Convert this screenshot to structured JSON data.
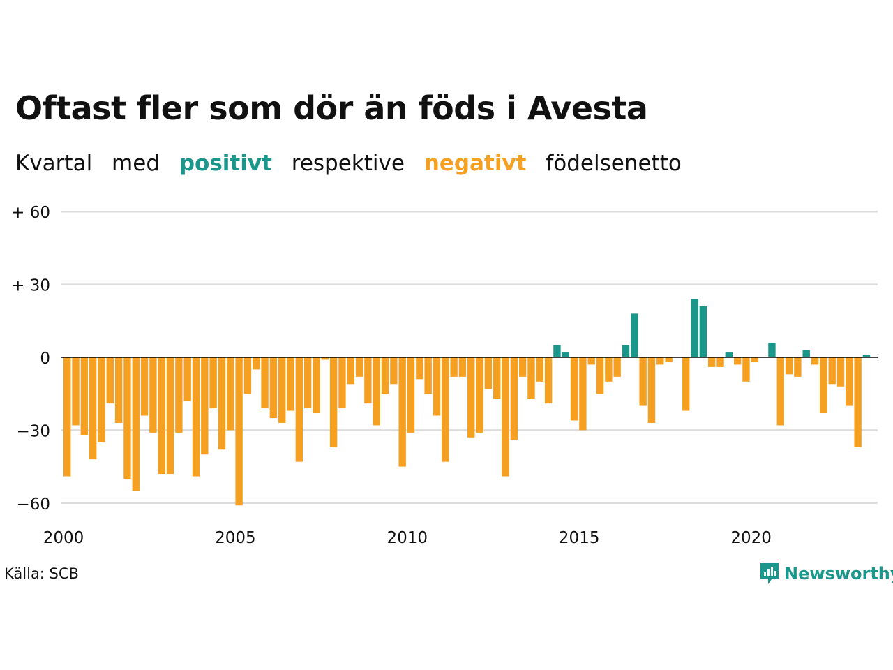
{
  "title": "Oftast fler som dör än föds i Avesta",
  "subtitle": {
    "w1": "Kvartal",
    "w2": "med",
    "positive": "positivt",
    "w3": "respektive",
    "negative": "negativt",
    "w4": "födelsenetto"
  },
  "colors": {
    "positive": "#1b968a",
    "negative": "#f5a021",
    "grid": "#dddddd",
    "zero": "#000000"
  },
  "source": "Källa: SCB",
  "brand": "Newsworthy",
  "chart_data": {
    "type": "bar",
    "x_start": 2000,
    "y_ticks": [
      {
        "value": 60,
        "label": "+ 60"
      },
      {
        "value": 30,
        "label": "+ 30"
      },
      {
        "value": 0,
        "label": "0"
      },
      {
        "value": -30,
        "label": "−30"
      },
      {
        "value": -60,
        "label": "−60"
      }
    ],
    "x_ticks": [
      "2000",
      "2005",
      "2010",
      "2015",
      "2020"
    ],
    "ylim": [
      -65,
      60
    ],
    "values": [
      -49,
      -28,
      -32,
      -42,
      -35,
      -19,
      -27,
      -50,
      -55,
      -24,
      -31,
      -48,
      -48,
      -31,
      -18,
      -49,
      -40,
      -21,
      -38,
      -30,
      -61,
      -15,
      -5,
      -21,
      -25,
      -27,
      -22,
      -43,
      -21,
      -23,
      -1,
      -37,
      -21,
      -11,
      -8,
      -19,
      -28,
      -15,
      -11,
      -45,
      -31,
      -9,
      -15,
      -24,
      -43,
      -8,
      -8,
      -33,
      -31,
      -13,
      -17,
      -49,
      -34,
      -8,
      -17,
      -10,
      -19,
      5,
      2,
      -26,
      -30,
      -3,
      -15,
      -10,
      -8,
      5,
      18,
      -20,
      -27,
      -3,
      -2,
      0,
      -22,
      24,
      21,
      -4,
      -4,
      2,
      -3,
      -10,
      -2,
      0,
      6,
      -28,
      -7,
      -8,
      3,
      -3,
      -23,
      -11,
      -12,
      -20,
      -37,
      1
    ]
  }
}
